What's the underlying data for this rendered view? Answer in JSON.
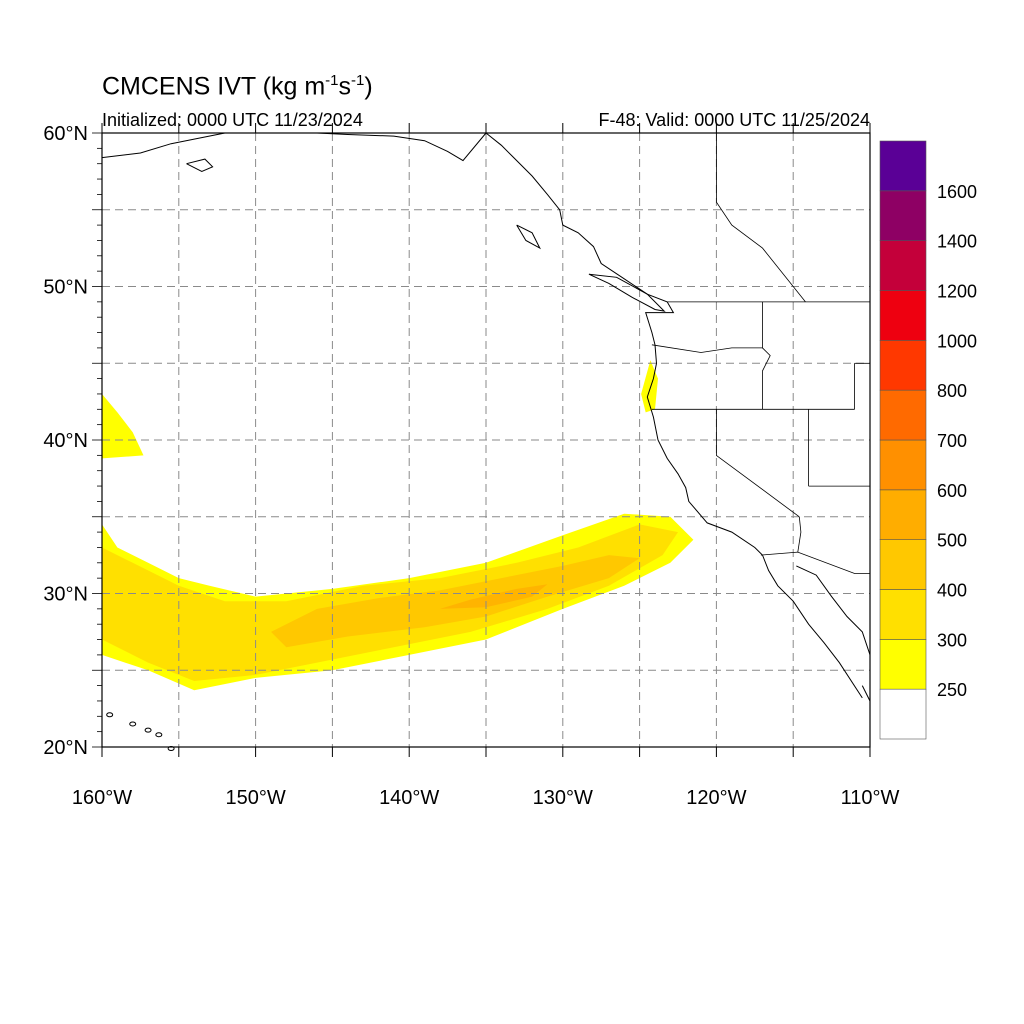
{
  "title": {
    "main": "CMCENS IVT (kg m",
    "exp1": "-1",
    "mid": "s",
    "exp2": "-1",
    "end": ")"
  },
  "initialized": "Initialized: 0000 UTC 11/23/2024",
  "valid": "F-48: Valid: 0000 UTC 11/25/2024",
  "map": {
    "lon_range": [
      -160,
      -110
    ],
    "lat_range": [
      20,
      60
    ],
    "lat_labels": [
      "20°N",
      "30°N",
      "40°N",
      "50°N",
      "60°N"
    ],
    "lon_labels": [
      "160°W",
      "150°W",
      "140°W",
      "130°W",
      "120°W",
      "110°W"
    ],
    "gridlines_dashed": true,
    "grid_lon_step": 5,
    "grid_lat_step": 5
  },
  "colorbar": {
    "labels": [
      "250",
      "300",
      "400",
      "500",
      "600",
      "700",
      "800",
      "1000",
      "1200",
      "1400",
      "1600"
    ],
    "colors": [
      "#ffffff",
      "#ffff00",
      "#ffe000",
      "#ffc800",
      "#ffad00",
      "#ff9000",
      "#ff6a00",
      "#ff3800",
      "#ee0010",
      "#c4003a",
      "#8e0064",
      "#5a0096"
    ]
  },
  "ivt_field": {
    "units": "kg m-1 s-1",
    "regions": [
      {
        "level": 250,
        "color": "#ffff00",
        "lonlat": [
          [
            -160,
            34.5
          ],
          [
            -159,
            33
          ],
          [
            -157,
            32
          ],
          [
            -155,
            31
          ],
          [
            -153,
            30.5
          ],
          [
            -150,
            29.8
          ],
          [
            -145,
            30.3
          ],
          [
            -140,
            31
          ],
          [
            -135,
            32
          ],
          [
            -130,
            33.8
          ],
          [
            -126,
            35.2
          ],
          [
            -123,
            35
          ],
          [
            -121.5,
            33.5
          ],
          [
            -123,
            32
          ],
          [
            -126,
            30.5
          ],
          [
            -130,
            29
          ],
          [
            -135,
            27
          ],
          [
            -140,
            26
          ],
          [
            -145,
            25
          ],
          [
            -150,
            24.5
          ],
          [
            -154,
            23.7
          ],
          [
            -157,
            25
          ],
          [
            -160,
            26
          ]
        ]
      },
      {
        "level": 300,
        "color": "#ffe000",
        "lonlat": [
          [
            -160,
            33
          ],
          [
            -158,
            32
          ],
          [
            -155,
            30.5
          ],
          [
            -152,
            29.5
          ],
          [
            -148,
            29.5
          ],
          [
            -143,
            30.5
          ],
          [
            -138,
            31
          ],
          [
            -133,
            32
          ],
          [
            -129,
            33
          ],
          [
            -125,
            34.5
          ],
          [
            -122.5,
            34
          ],
          [
            -123.5,
            32.5
          ],
          [
            -127,
            30.5
          ],
          [
            -131,
            29
          ],
          [
            -136,
            27.5
          ],
          [
            -141,
            26.5
          ],
          [
            -146,
            25.5
          ],
          [
            -150,
            24.7
          ],
          [
            -154,
            24.3
          ],
          [
            -157,
            25.5
          ],
          [
            -160,
            27
          ]
        ]
      },
      {
        "level": 400,
        "color": "#ffc800",
        "lonlat": [
          [
            -149,
            27.5
          ],
          [
            -146,
            29
          ],
          [
            -142,
            29.7
          ],
          [
            -138,
            30.2
          ],
          [
            -134,
            31
          ],
          [
            -130,
            31.8
          ],
          [
            -127,
            32.5
          ],
          [
            -125,
            32.3
          ],
          [
            -127,
            31
          ],
          [
            -131,
            29.8
          ],
          [
            -135,
            28.5
          ],
          [
            -139,
            27.8
          ],
          [
            -144,
            27.2
          ],
          [
            -148,
            26.5
          ]
        ]
      },
      {
        "level": 500,
        "color": "#ffb400",
        "lonlat": [
          [
            -138,
            29
          ],
          [
            -136,
            29.6
          ],
          [
            -133,
            30.3
          ],
          [
            -131,
            30.6
          ],
          [
            -132,
            29.8
          ],
          [
            -135,
            29.1
          ]
        ]
      },
      {
        "level": 250,
        "color": "#ffff00",
        "lonlat": [
          [
            -160,
            43
          ],
          [
            -159,
            41.8
          ],
          [
            -158,
            40.5
          ],
          [
            -157.3,
            39
          ],
          [
            -160,
            38.8
          ]
        ]
      },
      {
        "level": 250,
        "color": "#ffff00",
        "lonlat": [
          [
            -124.3,
            45.2
          ],
          [
            -123.8,
            44
          ],
          [
            -124,
            42
          ],
          [
            -124.6,
            41.8
          ],
          [
            -124.9,
            43
          ]
        ]
      }
    ]
  }
}
